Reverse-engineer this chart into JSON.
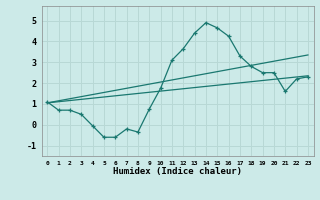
{
  "xlabel": "Humidex (Indice chaleur)",
  "bg_color": "#cceae8",
  "grid_color": "#b8d8d5",
  "line_color": "#1a7870",
  "xlim": [
    -0.5,
    23.5
  ],
  "ylim": [
    -1.5,
    5.7
  ],
  "xticks": [
    0,
    1,
    2,
    3,
    4,
    5,
    6,
    7,
    8,
    9,
    10,
    11,
    12,
    13,
    14,
    15,
    16,
    17,
    18,
    19,
    20,
    21,
    22,
    23
  ],
  "yticks": [
    -1,
    0,
    1,
    2,
    3,
    4,
    5
  ],
  "series1_x": [
    0,
    1,
    2,
    3,
    4,
    5,
    6,
    7,
    8,
    9,
    10,
    11,
    12,
    13,
    14,
    15,
    16,
    17,
    18,
    19,
    20,
    21,
    22,
    23
  ],
  "series1_y": [
    1.1,
    0.7,
    0.7,
    0.5,
    -0.05,
    -0.6,
    -0.6,
    -0.2,
    -0.35,
    0.75,
    1.75,
    3.1,
    3.65,
    4.4,
    4.9,
    4.65,
    4.25,
    3.3,
    2.8,
    2.5,
    2.5,
    1.6,
    2.2,
    2.3
  ],
  "line1_x": [
    0,
    23
  ],
  "line1_y": [
    1.05,
    2.35
  ],
  "line2_x": [
    0,
    23
  ],
  "line2_y": [
    1.05,
    3.35
  ]
}
